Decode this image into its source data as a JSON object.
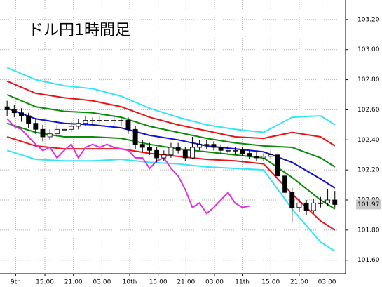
{
  "chart_data": {
    "type": "candlestick",
    "title": "ドル円1時間足",
    "xlim": [
      -1,
      47.5
    ],
    "ylim": [
      101.51,
      103.33
    ],
    "xticks": [
      {
        "value": 1.2,
        "label": "9th"
      },
      {
        "value": 5.3,
        "label": "15:00"
      },
      {
        "value": 9.3,
        "label": "21:00"
      },
      {
        "value": 13.3,
        "label": "03:00"
      },
      {
        "value": 17.2,
        "label": "10th"
      },
      {
        "value": 21.2,
        "label": "15:00"
      },
      {
        "value": 25.1,
        "label": "21:00"
      },
      {
        "value": 29.1,
        "label": "03:00"
      },
      {
        "value": 33,
        "label": "11th"
      },
      {
        "value": 37,
        "label": "15:00"
      },
      {
        "value": 41,
        "label": "21:00"
      },
      {
        "value": 44.9,
        "label": "03:00"
      }
    ],
    "yticks": [
      {
        "value": 101.6,
        "label": "101.60"
      },
      {
        "value": 101.8,
        "label": "101.80"
      },
      {
        "value": 102.0,
        "label": "102.00"
      },
      {
        "value": 102.2,
        "label": "102.20"
      },
      {
        "value": 102.4,
        "label": "102.40"
      },
      {
        "value": 102.6,
        "label": "102.60"
      },
      {
        "value": 102.8,
        "label": "102.80"
      },
      {
        "value": 103.0,
        "label": "103.00"
      },
      {
        "value": 103.2,
        "label": "103.20"
      }
    ],
    "grid": true,
    "up_color": "#ffffff",
    "down_color": "#000000",
    "open": [
      102.62,
      102.6,
      102.58,
      102.56,
      102.51,
      102.47,
      102.42,
      102.44,
      102.47,
      102.47,
      102.49,
      102.51,
      102.53,
      102.53,
      102.53,
      102.53,
      102.53,
      102.53,
      102.47,
      102.37,
      102.35,
      102.33,
      102.28,
      102.3,
      102.35,
      102.33,
      102.28,
      102.35,
      102.37,
      102.37,
      102.35,
      102.33,
      102.33,
      102.33,
      102.31,
      102.29,
      102.28,
      102.29,
      102.3,
      102.16,
      102.05,
      101.95,
      101.98,
      101.93,
      101.98,
      101.98,
      102.0
    ],
    "high": [
      102.66,
      102.63,
      102.61,
      102.58,
      102.54,
      102.5,
      102.47,
      102.5,
      102.5,
      102.52,
      102.54,
      102.56,
      102.55,
      102.56,
      102.55,
      102.56,
      102.55,
      102.55,
      102.49,
      102.4,
      102.38,
      102.35,
      102.33,
      102.38,
      102.38,
      102.35,
      102.42,
      102.4,
      102.4,
      102.39,
      102.37,
      102.36,
      102.35,
      102.35,
      102.33,
      102.32,
      102.31,
      102.33,
      102.32,
      102.18,
      102.08,
      102.01,
      102.0,
      102.01,
      102.02,
      102.07,
      102.06
    ],
    "low": [
      102.56,
      102.55,
      102.52,
      102.48,
      102.44,
      102.39,
      102.4,
      102.42,
      102.44,
      102.45,
      102.47,
      102.49,
      102.5,
      102.51,
      102.51,
      102.5,
      102.49,
      102.44,
      102.34,
      102.32,
      102.3,
      102.25,
      102.26,
      102.28,
      102.31,
      102.26,
      102.27,
      102.33,
      102.34,
      102.33,
      102.31,
      102.31,
      102.3,
      102.29,
      102.27,
      102.26,
      102.26,
      102.27,
      102.12,
      102.02,
      101.85,
      101.92,
      101.9,
      101.91,
      101.95,
      101.96,
      101.95
    ],
    "close": [
      102.6,
      102.58,
      102.56,
      102.51,
      102.47,
      102.42,
      102.44,
      102.47,
      102.47,
      102.49,
      102.51,
      102.53,
      102.53,
      102.53,
      102.53,
      102.53,
      102.53,
      102.47,
      102.37,
      102.35,
      102.33,
      102.28,
      102.3,
      102.35,
      102.33,
      102.28,
      102.35,
      102.37,
      102.37,
      102.35,
      102.33,
      102.33,
      102.33,
      102.31,
      102.29,
      102.28,
      102.29,
      102.3,
      102.16,
      102.05,
      101.95,
      101.98,
      101.93,
      101.98,
      101.98,
      102.0,
      101.97
    ],
    "lines": [
      {
        "color": "#33e5f5",
        "x": [
          0,
          4,
          8,
          12,
          16,
          20,
          24,
          28,
          32,
          36,
          40,
          44,
          46
        ],
        "values": [
          102.88,
          102.8,
          102.76,
          102.74,
          102.69,
          102.61,
          102.55,
          102.5,
          102.47,
          102.45,
          102.55,
          102.56,
          102.5
        ]
      },
      {
        "color": "#e8141c",
        "x": [
          0,
          4,
          8,
          12,
          16,
          20,
          24,
          28,
          32,
          36,
          40,
          44,
          46
        ],
        "values": [
          102.79,
          102.71,
          102.68,
          102.66,
          102.62,
          102.55,
          102.5,
          102.46,
          102.42,
          102.41,
          102.45,
          102.42,
          102.36
        ]
      },
      {
        "color": "#0a8a0a",
        "x": [
          0,
          4,
          8,
          12,
          16,
          20,
          24,
          28,
          32,
          36,
          40,
          44,
          46
        ],
        "values": [
          102.7,
          102.62,
          102.59,
          102.58,
          102.55,
          102.49,
          102.45,
          102.41,
          102.38,
          102.36,
          102.35,
          102.28,
          102.22
        ]
      },
      {
        "color": "#1010d0",
        "x": [
          0,
          4,
          8,
          12,
          16,
          20,
          24,
          28,
          32,
          36,
          40,
          44,
          46
        ],
        "values": [
          102.61,
          102.54,
          102.51,
          102.5,
          102.48,
          102.43,
          102.4,
          102.36,
          102.34,
          102.32,
          102.25,
          102.14,
          102.08
        ]
      },
      {
        "color": "#0a8a0a",
        "x": [
          0,
          4,
          8,
          12,
          16,
          20,
          24,
          28,
          32,
          36,
          40,
          44,
          46
        ],
        "values": [
          102.51,
          102.45,
          102.42,
          102.42,
          102.41,
          102.37,
          102.34,
          102.32,
          102.3,
          102.28,
          102.15,
          102.0,
          101.94
        ]
      },
      {
        "color": "#e8141c",
        "x": [
          0,
          4,
          8,
          12,
          16,
          20,
          24,
          28,
          32,
          36,
          40,
          44,
          46
        ],
        "values": [
          102.42,
          102.36,
          102.34,
          102.34,
          102.34,
          102.31,
          102.29,
          102.27,
          102.26,
          102.24,
          102.04,
          101.86,
          101.8
        ]
      },
      {
        "color": "#33e5f5",
        "x": [
          0,
          4,
          8,
          12,
          16,
          20,
          24,
          28,
          32,
          36,
          40,
          44,
          46
        ],
        "values": [
          102.33,
          102.27,
          102.26,
          102.26,
          102.27,
          102.25,
          102.24,
          102.22,
          102.21,
          102.2,
          101.94,
          101.72,
          101.66
        ]
      },
      {
        "color": "#e030e0",
        "x": [
          0,
          1,
          2,
          3,
          4,
          5,
          6,
          7,
          8,
          9,
          10,
          11,
          12,
          13,
          14,
          15,
          16,
          17,
          18,
          19,
          20,
          21,
          22,
          23,
          24,
          25,
          26,
          27,
          28,
          29,
          30,
          31,
          32,
          33,
          34
        ],
        "values": [
          102.54,
          102.49,
          102.47,
          102.42,
          102.37,
          102.33,
          102.35,
          102.28,
          102.33,
          102.37,
          102.28,
          102.35,
          102.37,
          102.35,
          102.37,
          102.35,
          102.34,
          102.33,
          102.28,
          102.28,
          102.21,
          102.26,
          102.28,
          102.21,
          102.16,
          102.07,
          101.95,
          101.98,
          101.91,
          101.95,
          102.0,
          102.05,
          101.98,
          101.95,
          101.96
        ]
      }
    ],
    "last_label": {
      "value": 101.97,
      "label": "101.97"
    }
  }
}
